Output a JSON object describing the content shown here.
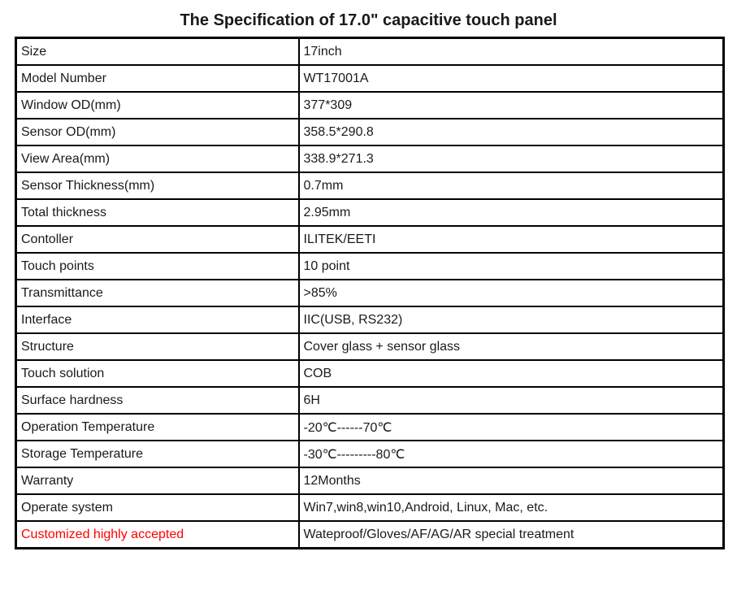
{
  "page": {
    "title": "The Specification of 17.0\" capacitive touch panel"
  },
  "colors": {
    "background": "#ffffff",
    "border": "#000000",
    "text": "#1a1a1a",
    "accent_label": "#ff0000"
  },
  "table": {
    "rows": [
      {
        "label": "Size",
        "value": "17inch"
      },
      {
        "label": "Model Number",
        "value": "WT17001A"
      },
      {
        "label": "Window OD(mm)",
        "value": "377*309"
      },
      {
        "label": "Sensor OD(mm)",
        "value": "358.5*290.8"
      },
      {
        "label": "View Area(mm)",
        "value": "338.9*271.3"
      },
      {
        "label": "Sensor Thickness(mm)",
        "value": "0.7mm"
      },
      {
        "label": "Total thickness",
        "value": "2.95mm"
      },
      {
        "label": "Contoller",
        "value": "ILITEK/EETI"
      },
      {
        "label": "Touch points",
        "value": "10 point"
      },
      {
        "label": "Transmittance",
        "value": ">85%"
      },
      {
        "label": "Interface",
        "value": "IIC(USB, RS232)"
      },
      {
        "label": "Structure",
        "value": "Cover glass + sensor glass"
      },
      {
        "label": "Touch solution",
        "value": "COB"
      },
      {
        "label": "Surface hardness",
        "value": "6H"
      },
      {
        "label": "Operation Temperature",
        "value": "-20℃------70℃"
      },
      {
        "label": "Storage Temperature",
        "value": "-30℃---------80℃"
      },
      {
        "label": "Warranty",
        "value": "12Months"
      },
      {
        "label": "Operate system",
        "value": "Win7,win8,win10,Android, Linux, Mac, etc."
      },
      {
        "label": "Customized highly accepted",
        "value": "Wateproof/Gloves/AF/AG/AR special treatment",
        "accent": true
      }
    ]
  }
}
